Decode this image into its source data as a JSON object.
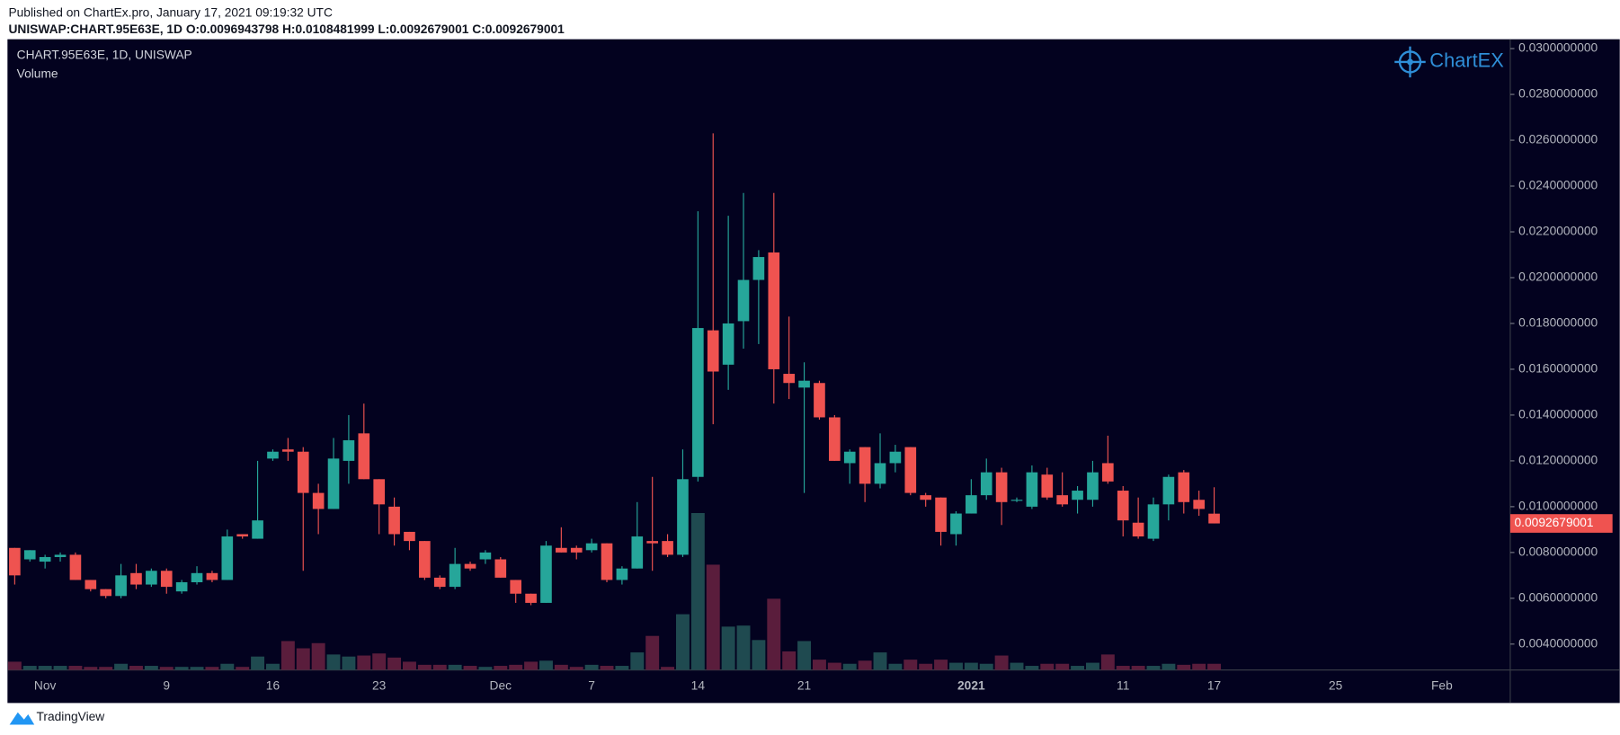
{
  "chart_data": {
    "type": "candlestick",
    "published": "Published on ChartEx.pro, January 17, 2021 09:19:32 UTC",
    "symbol_line": "UNISWAP:CHART.95E63E, 1D  O:0.0096943798  H:0.0108481999  L:0.0092679001  C:0.0092679001",
    "legend_title": "CHART.95E63E, 1D, UNISWAP",
    "volume_label": "Volume",
    "logo": "ChartEX",
    "footer": "TradingView",
    "categories": [
      null,
      null,
      "Nov",
      null,
      null,
      null,
      null,
      null,
      null,
      null,
      "9",
      null,
      null,
      null,
      null,
      null,
      null,
      "16",
      null,
      null,
      null,
      null,
      null,
      null,
      "23",
      null,
      null,
      null,
      null,
      null,
      null,
      null,
      "Dec",
      null,
      null,
      null,
      null,
      null,
      "7",
      null,
      null,
      null,
      null,
      null,
      null,
      "14",
      null,
      null,
      null,
      null,
      null,
      null,
      "21",
      null,
      null,
      null,
      null,
      null,
      null,
      null,
      null,
      null,
      null,
      "2021",
      null,
      null,
      null,
      null,
      null,
      null,
      null,
      null,
      null,
      "11",
      null,
      null,
      null,
      null,
      null,
      "17",
      null,
      null,
      null,
      null,
      null,
      null,
      null,
      "25",
      null,
      null,
      null,
      null,
      null,
      null,
      "Feb",
      null,
      null,
      null,
      null
    ],
    "open": [
      0.0082,
      0.0077,
      0.0076,
      0.0078,
      0.0079,
      0.0068,
      0.0064,
      0.0061,
      0.0071,
      0.0066,
      0.0072,
      0.0063,
      0.0067,
      0.0071,
      0.0068,
      0.0088,
      0.0086,
      0.0121,
      0.0125,
      0.0124,
      0.0106,
      0.0099,
      0.012,
      0.0132,
      0.0112,
      0.01,
      0.0089,
      0.0085,
      0.0069,
      0.0065,
      0.0075,
      0.0077,
      0.0077,
      0.0068,
      0.0062,
      0.0058,
      0.0082,
      0.0082,
      0.0081,
      0.0084,
      0.0068,
      0.0073,
      0.0085,
      0.0085,
      0.0079,
      0.0113,
      0.0177,
      0.0162,
      0.0181,
      0.0199,
      0.0211,
      0.0158,
      0.0152,
      0.0154,
      0.0139,
      0.0119,
      0.0126,
      0.011,
      0.0119,
      0.0126,
      0.0105,
      0.0104,
      0.0088,
      0.0097,
      0.0105,
      0.0115,
      0.0103,
      0.01,
      0.0114,
      0.0105,
      0.0103,
      0.0103,
      0.0119,
      0.0107,
      0.0093,
      0.0086,
      0.0101,
      0.0115,
      0.0103,
      0.0096943798,
      null,
      null,
      null,
      null,
      null,
      null,
      null,
      null,
      null,
      null,
      null,
      null,
      null,
      null,
      null,
      null,
      null,
      null,
      null
    ],
    "high": [
      0.0082,
      0.0081,
      0.0079,
      0.008,
      0.008,
      0.0068,
      0.0064,
      0.0075,
      0.0075,
      0.0073,
      0.0073,
      0.0068,
      0.0074,
      0.0072,
      0.009,
      0.0088,
      0.012,
      0.0125,
      0.013,
      0.0126,
      0.011,
      0.013,
      0.014,
      0.0145,
      0.0112,
      0.0104,
      0.0089,
      0.0085,
      0.007,
      0.0082,
      0.0076,
      0.0081,
      0.0078,
      0.0068,
      0.0062,
      0.0085,
      0.0091,
      0.0083,
      0.0086,
      0.0084,
      0.0074,
      0.0102,
      0.0113,
      0.0088,
      0.0125,
      0.0229,
      0.0263,
      0.0227,
      0.0237,
      0.0212,
      0.0237,
      0.0183,
      0.0163,
      0.0155,
      0.014,
      0.0125,
      0.0126,
      0.0132,
      0.0127,
      0.0126,
      0.0106,
      0.0104,
      0.0098,
      0.0112,
      0.0121,
      0.0117,
      0.0104,
      0.0118,
      0.0117,
      0.0115,
      0.0109,
      0.012,
      0.0131,
      0.0109,
      0.0104,
      0.0104,
      0.0114,
      0.0116,
      0.0107,
      0.0108481999,
      null,
      null,
      null,
      null,
      null,
      null,
      null,
      null,
      null,
      null,
      null,
      null,
      null,
      null,
      null,
      null,
      null,
      null,
      null
    ],
    "low": [
      0.0066,
      0.0076,
      0.0073,
      0.0076,
      0.0068,
      0.0063,
      0.006,
      0.006,
      0.0064,
      0.0065,
      0.0062,
      0.0062,
      0.0066,
      0.0067,
      0.0068,
      0.0086,
      0.0086,
      0.012,
      0.012,
      0.0072,
      0.0088,
      0.0099,
      0.011,
      0.0112,
      0.0088,
      0.0083,
      0.0081,
      0.0068,
      0.0064,
      0.0064,
      0.0072,
      0.0075,
      0.0069,
      0.0058,
      0.0057,
      0.0058,
      0.008,
      0.0077,
      0.008,
      0.0067,
      0.0066,
      0.0073,
      0.0072,
      0.0078,
      0.0078,
      0.0111,
      0.0136,
      0.0151,
      0.0169,
      0.0171,
      0.0145,
      0.0147,
      0.0106,
      0.0138,
      0.012,
      0.011,
      0.0102,
      0.0108,
      0.0115,
      0.0105,
      0.01,
      0.0083,
      0.0083,
      0.0097,
      0.0103,
      0.0092,
      0.0102,
      0.0099,
      0.0103,
      0.01,
      0.0097,
      0.01,
      0.011,
      0.0087,
      0.0086,
      0.0085,
      0.0094,
      0.0097,
      0.0096,
      0.0092679001,
      null,
      null,
      null,
      null,
      null,
      null,
      null,
      null,
      null,
      null,
      null,
      null,
      null,
      null,
      null,
      null,
      null,
      null,
      null
    ],
    "close": [
      0.007,
      0.0081,
      0.0078,
      0.0079,
      0.0068,
      0.0064,
      0.0061,
      0.007,
      0.0066,
      0.0072,
      0.0065,
      0.0067,
      0.0071,
      0.0068,
      0.0087,
      0.0087,
      0.0094,
      0.0124,
      0.0124,
      0.0106,
      0.0099,
      0.0121,
      0.0129,
      0.0112,
      0.0101,
      0.0088,
      0.0085,
      0.0069,
      0.0065,
      0.0075,
      0.0073,
      0.008,
      0.0069,
      0.0062,
      0.0058,
      0.0083,
      0.008,
      0.008,
      0.0084,
      0.0068,
      0.0073,
      0.0087,
      0.0084,
      0.0079,
      0.0112,
      0.0178,
      0.0159,
      0.018,
      0.0199,
      0.0209,
      0.016,
      0.0154,
      0.0155,
      0.0139,
      0.012,
      0.0124,
      0.011,
      0.0119,
      0.0124,
      0.0106,
      0.0103,
      0.0089,
      0.0097,
      0.0105,
      0.0115,
      0.0102,
      0.0103,
      0.0115,
      0.0104,
      0.0101,
      0.0107,
      0.0115,
      0.0111,
      0.0094,
      0.0087,
      0.0101,
      0.0113,
      0.0102,
      0.0099,
      0.0092679001,
      null,
      null,
      null,
      null,
      null,
      null,
      null,
      null,
      null,
      null,
      null,
      null,
      null,
      null,
      null,
      null,
      null,
      null,
      null
    ],
    "volume": [
      8,
      4,
      4,
      4,
      4,
      3,
      3,
      6,
      4,
      4,
      3,
      3,
      3,
      3,
      6,
      3,
      13,
      6,
      28,
      21,
      26,
      15,
      13,
      14,
      16,
      12,
      8,
      5,
      5,
      5,
      4,
      3,
      4,
      5,
      8,
      9,
      5,
      3,
      5,
      4,
      4,
      17,
      33,
      3,
      54,
      152,
      102,
      42,
      43,
      29,
      69,
      18,
      28,
      10,
      7,
      6,
      9,
      17,
      6,
      10,
      6,
      10,
      7,
      7,
      6,
      14,
      7,
      4,
      6,
      6,
      4,
      7,
      15,
      4,
      4,
      4,
      6,
      5,
      6,
      6,
      null,
      null,
      null,
      null,
      null,
      null,
      null,
      null,
      null,
      null,
      null,
      null,
      null,
      null,
      null,
      null,
      null,
      null,
      null
    ],
    "up_color": "#26a69a",
    "down_color": "#ef5350",
    "volume_up_color": "#1f4a50",
    "volume_down_color": "#5a1d3c",
    "ylim": [
      0.00287,
      0.03041
    ],
    "yticks": [
      {
        "value": 0.004,
        "label": "0.0040000000"
      },
      {
        "value": 0.006,
        "label": "0.0060000000"
      },
      {
        "value": 0.008,
        "label": "0.0080000000"
      },
      {
        "value": 0.01,
        "label": "0.0100000000"
      },
      {
        "value": 0.012,
        "label": "0.0120000000"
      },
      {
        "value": 0.014,
        "label": "0.0140000000"
      },
      {
        "value": 0.016,
        "label": "0.0160000000"
      },
      {
        "value": 0.018,
        "label": "0.0180000000"
      },
      {
        "value": 0.02,
        "label": "0.0200000000"
      },
      {
        "value": 0.022,
        "label": "0.0220000000"
      },
      {
        "value": 0.024,
        "label": "0.0240000000"
      },
      {
        "value": 0.026,
        "label": "0.0260000000"
      },
      {
        "value": 0.028,
        "label": "0.0280000000"
      },
      {
        "value": 0.03,
        "label": "0.0300000000"
      }
    ],
    "last_price": {
      "value": 0.0092679001,
      "label": "0.0092679001"
    },
    "grid": false
  }
}
